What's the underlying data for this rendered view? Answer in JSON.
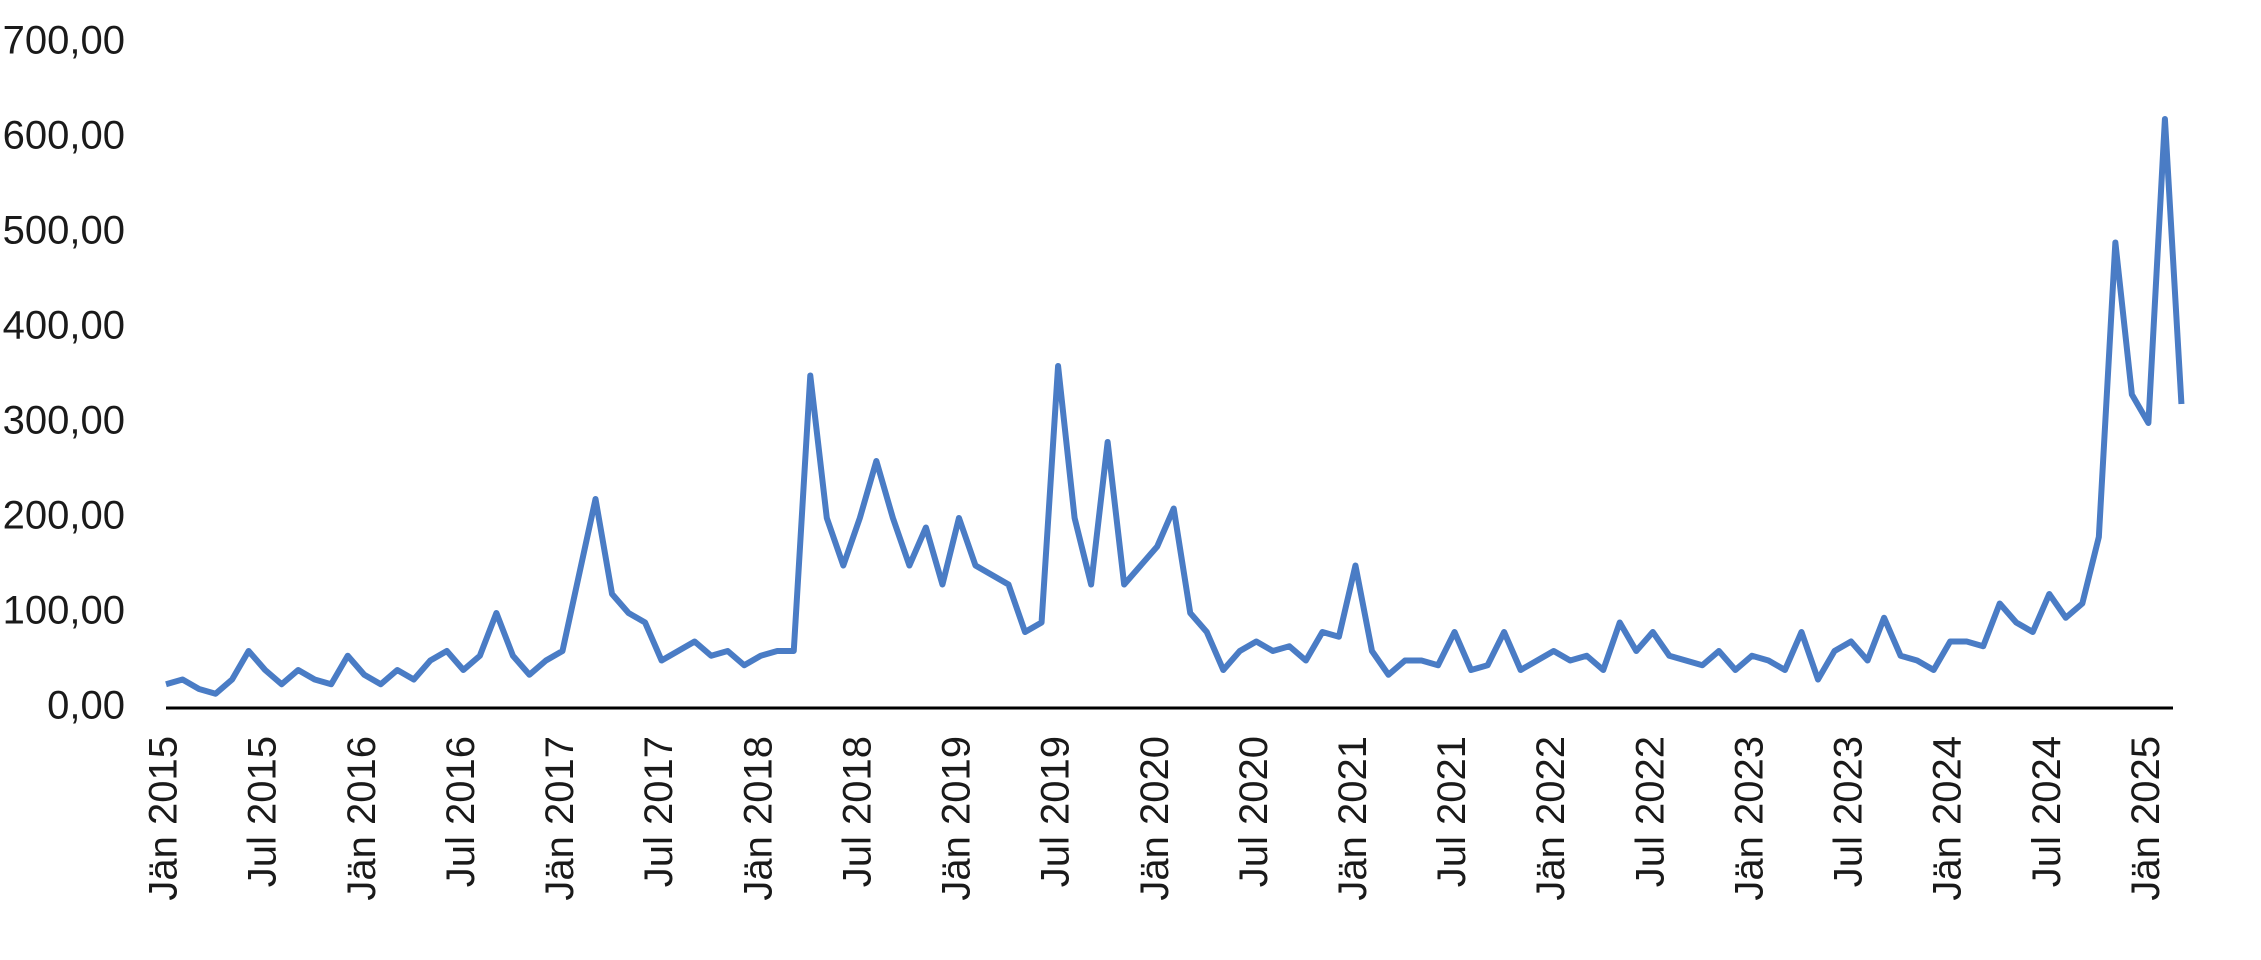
{
  "chart_data": {
    "type": "line",
    "x": [
      "2015-01",
      "2015-02",
      "2015-03",
      "2015-04",
      "2015-05",
      "2015-06",
      "2015-07",
      "2015-08",
      "2015-09",
      "2015-10",
      "2015-11",
      "2015-12",
      "2016-01",
      "2016-02",
      "2016-03",
      "2016-04",
      "2016-05",
      "2016-06",
      "2016-07",
      "2016-08",
      "2016-09",
      "2016-10",
      "2016-11",
      "2016-12",
      "2017-01",
      "2017-02",
      "2017-03",
      "2017-04",
      "2017-05",
      "2017-06",
      "2017-07",
      "2017-08",
      "2017-09",
      "2017-10",
      "2017-11",
      "2017-12",
      "2018-01",
      "2018-02",
      "2018-03",
      "2018-04",
      "2018-05",
      "2018-06",
      "2018-07",
      "2018-08",
      "2018-09",
      "2018-10",
      "2018-11",
      "2018-12",
      "2019-01",
      "2019-02",
      "2019-03",
      "2019-04",
      "2019-05",
      "2019-06",
      "2019-07",
      "2019-08",
      "2019-09",
      "2019-10",
      "2019-11",
      "2019-12",
      "2020-01",
      "2020-02",
      "2020-03",
      "2020-04",
      "2020-05",
      "2020-06",
      "2020-07",
      "2020-08",
      "2020-09",
      "2020-10",
      "2020-11",
      "2020-12",
      "2021-01",
      "2021-02",
      "2021-03",
      "2021-04",
      "2021-05",
      "2021-06",
      "2021-07",
      "2021-08",
      "2021-09",
      "2021-10",
      "2021-11",
      "2021-12",
      "2022-01",
      "2022-02",
      "2022-03",
      "2022-04",
      "2022-05",
      "2022-06",
      "2022-07",
      "2022-08",
      "2022-09",
      "2022-10",
      "2022-11",
      "2022-12",
      "2023-01",
      "2023-02",
      "2023-03",
      "2023-04",
      "2023-05",
      "2023-06",
      "2023-07",
      "2023-08",
      "2023-09",
      "2023-10",
      "2023-11",
      "2023-12",
      "2024-01",
      "2024-02",
      "2024-03",
      "2024-04",
      "2024-05",
      "2024-06",
      "2024-07",
      "2024-08",
      "2024-09",
      "2024-10",
      "2024-11",
      "2024-12",
      "2025-01",
      "2025-02",
      "2025-03"
    ],
    "series": [
      {
        "color": "#4a7cc5",
        "values": [
          25,
          30,
          20,
          15,
          30,
          60,
          40,
          25,
          40,
          30,
          25,
          55,
          35,
          25,
          40,
          30,
          50,
          60,
          40,
          55,
          100,
          55,
          35,
          50,
          60,
          140,
          220,
          120,
          100,
          90,
          50,
          60,
          70,
          55,
          60,
          45,
          55,
          60,
          60,
          350,
          200,
          150,
          200,
          260,
          200,
          150,
          190,
          130,
          200,
          150,
          140,
          130,
          80,
          90,
          360,
          200,
          130,
          280,
          130,
          150,
          170,
          210,
          100,
          80,
          40,
          60,
          70,
          60,
          65,
          50,
          80,
          75,
          150,
          60,
          35,
          50,
          50,
          45,
          80,
          40,
          45,
          80,
          40,
          50,
          60,
          50,
          55,
          40,
          90,
          60,
          80,
          55,
          50,
          45,
          60,
          40,
          55,
          50,
          40,
          80,
          30,
          60,
          70,
          50,
          95,
          55,
          50,
          40,
          70,
          70,
          65,
          110,
          90,
          80,
          120,
          95,
          110,
          180,
          490,
          330,
          300,
          620,
          320
        ]
      }
    ],
    "xticks": [
      {
        "value": "2015-01",
        "label": "Jän 2015"
      },
      {
        "value": "2015-07",
        "label": "Jul 2015"
      },
      {
        "value": "2016-01",
        "label": "Jän 2016"
      },
      {
        "value": "2016-07",
        "label": "Jul 2016"
      },
      {
        "value": "2017-01",
        "label": "Jän 2017"
      },
      {
        "value": "2017-07",
        "label": "Jul 2017"
      },
      {
        "value": "2018-01",
        "label": "Jän 2018"
      },
      {
        "value": "2018-07",
        "label": "Jul 2018"
      },
      {
        "value": "2019-01",
        "label": "Jän 2019"
      },
      {
        "value": "2019-07",
        "label": "Jul 2019"
      },
      {
        "value": "2020-01",
        "label": "Jän 2020"
      },
      {
        "value": "2020-07",
        "label": "Jul 2020"
      },
      {
        "value": "2021-01",
        "label": "Jän 2021"
      },
      {
        "value": "2021-07",
        "label": "Jul 2021"
      },
      {
        "value": "2022-01",
        "label": "Jän 2022"
      },
      {
        "value": "2022-07",
        "label": "Jul 2022"
      },
      {
        "value": "2023-01",
        "label": "Jän 2023"
      },
      {
        "value": "2023-07",
        "label": "Jul 2023"
      },
      {
        "value": "2024-01",
        "label": "Jän 2024"
      },
      {
        "value": "2024-07",
        "label": "Jul 2024"
      },
      {
        "value": "2025-01",
        "label": "Jän 2025"
      }
    ],
    "ylim": [
      0,
      700
    ],
    "yticks": [
      {
        "value": 0,
        "label": "0,00"
      },
      {
        "value": 100,
        "label": "100,00"
      },
      {
        "value": 200,
        "label": "200,00"
      },
      {
        "value": 300,
        "label": "300,00"
      },
      {
        "value": 400,
        "label": "400,00"
      },
      {
        "value": 500,
        "label": "500,00"
      },
      {
        "value": 600,
        "label": "600,00"
      },
      {
        "value": 700,
        "label": "700,00"
      }
    ],
    "grid": false
  }
}
